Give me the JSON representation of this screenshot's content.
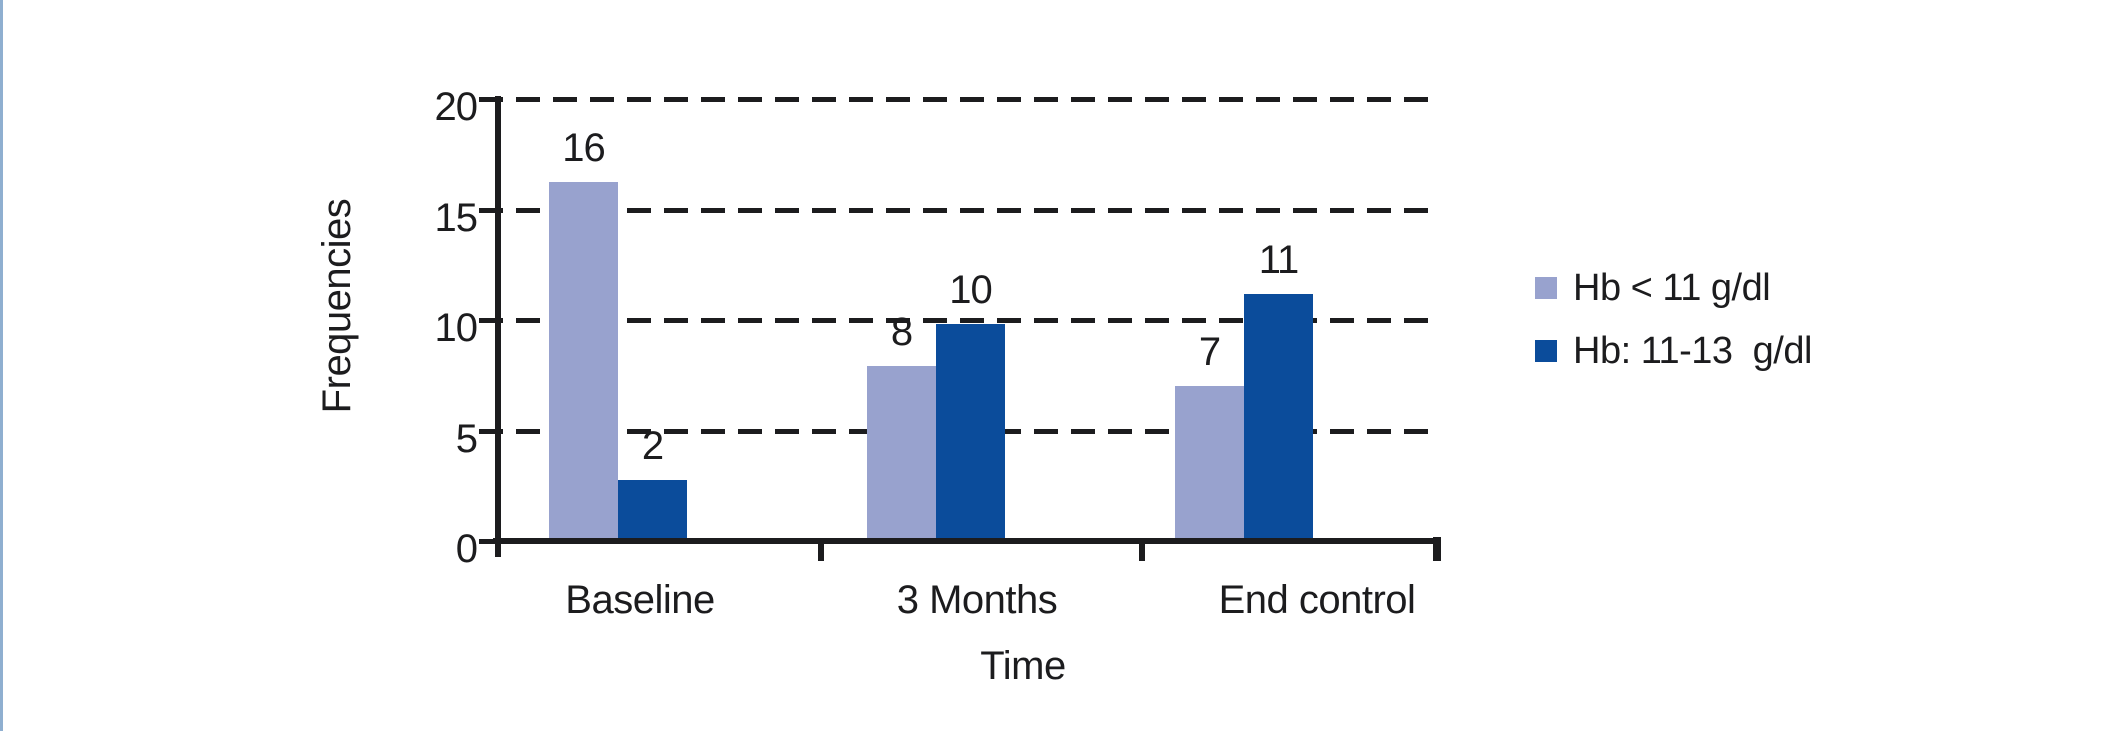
{
  "page": {
    "background": "#ffffff",
    "left_edge_line_color": "#8fafd0",
    "ink_color": "#1c1c1e"
  },
  "chart_data": {
    "type": "bar",
    "title": "",
    "categories": [
      "Baseline",
      "3 Months",
      "End control"
    ],
    "series": [
      {
        "name": "Hb < 11 g/dl",
        "color": "#98a2ce",
        "values": [
          16,
          8,
          7
        ],
        "drawn_values": [
          16.3,
          7.9,
          7.0
        ]
      },
      {
        "name": "Hb: 11-13  g/dl",
        "color": "#0b4c9b",
        "values": [
          2,
          10,
          11
        ],
        "drawn_values": [
          2.7,
          9.8,
          11.2
        ]
      }
    ],
    "xlabel": "Time",
    "ylabel": "Frequencies",
    "yticks": [
      0,
      5,
      10,
      15,
      20
    ],
    "ylim": [
      0,
      20
    ],
    "grid": "dashed horizontal gridlines at 5,10,15,20",
    "legend_position": "right",
    "bar_value_labels": true
  }
}
